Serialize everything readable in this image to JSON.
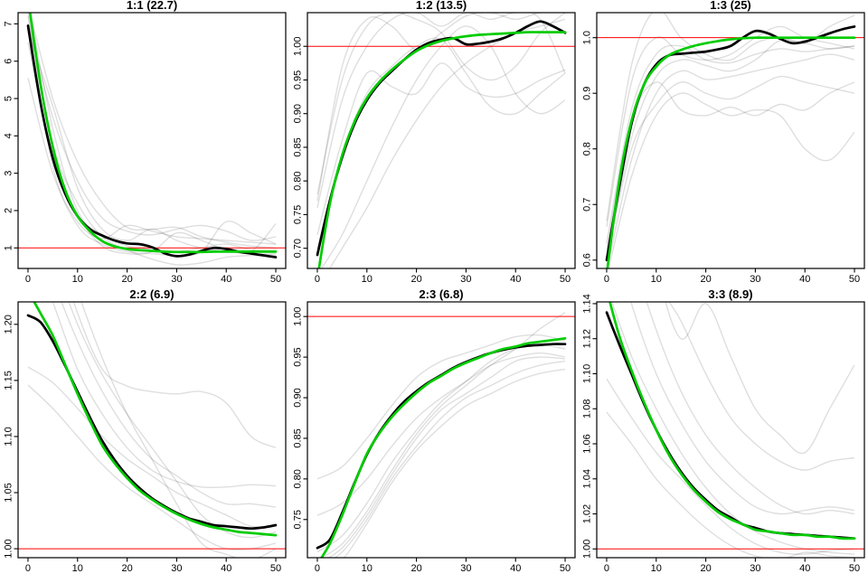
{
  "figure": {
    "background": "#ffffff",
    "colors": {
      "dark_line": "#000000",
      "smooth_line": "#00CC00",
      "reference_line": "#FF0000",
      "faint_line": "rgba(0,0,0,0.13)",
      "box": "#000000"
    }
  },
  "x_fine": [
    0,
    2.5,
    5,
    7.5,
    10,
    12.5,
    15,
    17.5,
    20,
    22.5,
    25,
    27.5,
    30,
    32.5,
    35,
    37.5,
    40,
    42.5,
    45,
    47.5,
    50
  ],
  "x_coarse": [
    0,
    5,
    10,
    15,
    20,
    25,
    30,
    35,
    40,
    45,
    50
  ],
  "x_ticks": [
    0,
    10,
    20,
    30,
    40,
    50
  ],
  "x_tick_labels": [
    "0",
    "10",
    "20",
    "30",
    "40",
    "50"
  ],
  "chart_data": [
    {
      "type": "line",
      "title": "1:1 (22.7)",
      "xlim": [
        -2,
        52
      ],
      "ylim": [
        0.45,
        7.3
      ],
      "reference_y": 1.0,
      "y_ticks": [
        1,
        2,
        3,
        4,
        5,
        6,
        7
      ],
      "y_tick_labels": [
        "1",
        "2",
        "3",
        "4",
        "5",
        "6",
        "7"
      ],
      "dark": [
        6.95,
        4.9,
        3.4,
        2.45,
        1.85,
        1.5,
        1.33,
        1.2,
        1.12,
        1.1,
        1.02,
        0.86,
        0.78,
        0.82,
        0.92,
        1.0,
        0.97,
        0.9,
        0.85,
        0.8,
        0.75
      ],
      "smooth": [
        7.7,
        5.4,
        3.7,
        2.55,
        1.85,
        1.45,
        1.18,
        1.04,
        0.97,
        0.94,
        0.92,
        0.9,
        0.89,
        0.89,
        0.89,
        0.9,
        0.9,
        0.9,
        0.9,
        0.9,
        0.9
      ],
      "faint": [
        [
          7.6,
          4.2,
          2.0,
          1.35,
          1.05,
          0.95,
          0.9,
          1.0,
          1.1,
          0.95,
          0.9
        ],
        [
          7.2,
          3.2,
          1.6,
          1.1,
          0.9,
          0.85,
          0.8,
          0.9,
          1.7,
          1.4,
          1.1
        ],
        [
          6.8,
          4.8,
          2.6,
          1.5,
          1.2,
          1.5,
          1.2,
          1.0,
          0.9,
          0.85,
          0.8
        ],
        [
          5.55,
          3.0,
          1.7,
          1.25,
          1.6,
          1.45,
          1.3,
          1.25,
          1.2,
          1.15,
          1.1
        ],
        [
          7.5,
          5.0,
          3.3,
          2.2,
          1.55,
          1.5,
          1.55,
          1.3,
          1.15,
          1.05,
          1.0
        ],
        [
          7.3,
          3.8,
          2.2,
          1.3,
          0.95,
          0.7,
          0.55,
          0.6,
          0.75,
          0.8,
          0.85
        ],
        [
          6.5,
          3.5,
          1.9,
          1.05,
          0.85,
          0.9,
          1.4,
          1.2,
          0.95,
          0.9,
          1.65
        ],
        [
          7.0,
          4.5,
          2.8,
          1.8,
          1.45,
          1.35,
          1.5,
          1.6,
          1.45,
          1.2,
          1.3
        ]
      ]
    },
    {
      "type": "line",
      "title": "1:2 (13.5)",
      "xlim": [
        -2,
        52
      ],
      "ylim": [
        0.67,
        1.05
      ],
      "reference_y": 1.0,
      "y_ticks": [
        0.7,
        0.75,
        0.8,
        0.85,
        0.9,
        0.95,
        1.0
      ],
      "y_tick_labels": [
        "0.70",
        "0.75",
        "0.80",
        "0.85",
        "0.90",
        "0.95",
        "1.00"
      ],
      "dark": [
        0.69,
        0.77,
        0.835,
        0.885,
        0.92,
        0.945,
        0.963,
        0.98,
        0.995,
        1.005,
        1.01,
        1.012,
        1.003,
        1.004,
        1.007,
        1.012,
        1.02,
        1.03,
        1.037,
        1.03,
        1.02
      ],
      "smooth": [
        0.655,
        0.765,
        0.838,
        0.888,
        0.923,
        0.947,
        0.965,
        0.98,
        0.993,
        1.002,
        1.008,
        1.012,
        1.015,
        1.017,
        1.018,
        1.019,
        1.02,
        1.021,
        1.021,
        1.021,
        1.021
      ],
      "faint": [
        [
          0.78,
          0.95,
          1.03,
          1.05,
          1.04,
          1.02,
          0.97,
          0.95,
          0.97,
          1.02,
          1.05
        ],
        [
          0.76,
          0.92,
          1.0,
          1.04,
          1.05,
          1.03,
          1.05,
          1.04,
          1.05,
          1.04,
          0.96
        ],
        [
          0.72,
          0.86,
          0.96,
          0.94,
          0.93,
          0.975,
          0.94,
          0.925,
          0.93,
          0.95,
          0.965
        ],
        [
          0.66,
          0.72,
          0.8,
          0.88,
          0.95,
          1.0,
          1.03,
          1.0,
          0.93,
          0.9,
          0.92
        ],
        [
          0.64,
          0.7,
          0.76,
          0.83,
          0.89,
          0.94,
          0.975,
          1.0,
          1.02,
          1.03,
          1.04
        ],
        [
          0.77,
          0.97,
          1.04,
          1.03,
          0.995,
          1.02,
          1.045,
          1.05,
          1.04,
          1.05,
          1.05
        ],
        [
          0.7,
          0.84,
          0.93,
          0.97,
          1.0,
          1.01,
          0.96,
          0.91,
          0.9,
          0.93,
          0.96
        ]
      ]
    },
    {
      "type": "line",
      "title": "1:3 (25)",
      "xlim": [
        -2,
        52
      ],
      "ylim": [
        0.585,
        1.045
      ],
      "reference_y": 1.0,
      "y_ticks": [
        0.6,
        0.7,
        0.8,
        0.9,
        1.0
      ],
      "y_tick_labels": [
        "0.6",
        "0.7",
        "0.8",
        "0.9",
        "1.0"
      ],
      "dark": [
        0.6,
        0.73,
        0.845,
        0.915,
        0.952,
        0.968,
        0.971,
        0.973,
        0.975,
        0.979,
        0.985,
        1.0,
        1.012,
        1.008,
        0.998,
        0.99,
        0.993,
        1.0,
        1.008,
        1.015,
        1.02
      ],
      "smooth": [
        0.575,
        0.74,
        0.85,
        0.915,
        0.948,
        0.968,
        0.978,
        0.985,
        0.99,
        0.994,
        0.997,
        0.999,
        1.0,
        1.0,
        1.0,
        1.0,
        1.0,
        1.0,
        1.0,
        1.0,
        1.0
      ],
      "faint": [
        [
          0.67,
          0.95,
          1.05,
          1.0,
          0.97,
          0.96,
          0.99,
          1.0,
          0.99,
          1.02,
          1.04
        ],
        [
          0.63,
          0.87,
          0.97,
          0.985,
          0.96,
          0.955,
          0.97,
          0.98,
          0.975,
          0.98,
          0.985
        ],
        [
          0.6,
          0.82,
          0.93,
          0.96,
          0.95,
          0.94,
          0.96,
          0.995,
          0.99,
          0.98,
          0.985
        ],
        [
          0.58,
          0.78,
          0.9,
          0.94,
          0.925,
          0.93,
          0.94,
          0.95,
          0.96,
          0.97,
          0.96
        ],
        [
          0.62,
          0.85,
          0.92,
          0.87,
          0.86,
          0.875,
          0.86,
          0.88,
          0.87,
          0.9,
          0.92
        ],
        [
          0.57,
          0.75,
          0.86,
          0.9,
          0.88,
          0.86,
          0.87,
          0.86,
          0.8,
          0.78,
          0.83
        ],
        [
          0.66,
          0.92,
          1.0,
          0.97,
          0.96,
          0.97,
          1.0,
          1.02,
          1.0,
          0.99,
          0.98
        ],
        [
          0.6,
          0.8,
          0.88,
          0.92,
          0.9,
          0.89,
          0.91,
          0.93,
          0.92,
          0.91,
          0.9
        ]
      ]
    },
    {
      "type": "line",
      "title": "2:2 (6.9)",
      "xlim": [
        -2,
        52
      ],
      "ylim": [
        0.992,
        1.22
      ],
      "reference_y": 1.0,
      "y_ticks": [
        1.0,
        1.05,
        1.1,
        1.15,
        1.2
      ],
      "y_tick_labels": [
        "1.00",
        "1.05",
        "1.10",
        "1.15",
        "1.20"
      ],
      "dark": [
        1.208,
        1.202,
        1.185,
        1.163,
        1.14,
        1.117,
        1.096,
        1.079,
        1.065,
        1.054,
        1.045,
        1.038,
        1.032,
        1.027,
        1.024,
        1.021,
        1.02,
        1.019,
        1.018,
        1.019,
        1.021
      ],
      "smooth": [
        1.23,
        1.21,
        1.19,
        1.164,
        1.138,
        1.114,
        1.092,
        1.076,
        1.063,
        1.052,
        1.044,
        1.037,
        1.031,
        1.026,
        1.022,
        1.019,
        1.017,
        1.015,
        1.014,
        1.013,
        1.012
      ],
      "faint": [
        [
          1.162,
          1.148,
          1.125,
          1.1,
          1.08,
          1.065,
          1.05,
          1.04,
          1.03,
          1.02,
          1.02
        ],
        [
          1.146,
          1.125,
          1.1,
          1.075,
          1.055,
          1.04,
          1.025,
          1.01,
          1.0,
          1.0,
          1.005
        ],
        [
          1.28,
          1.22,
          1.16,
          1.12,
          1.09,
          1.07,
          1.06,
          1.055,
          1.055,
          1.057,
          1.056
        ],
        [
          1.3,
          1.24,
          1.185,
          1.14,
          1.105,
          1.08,
          1.065,
          1.05,
          1.04,
          1.04,
          1.037
        ],
        [
          1.35,
          1.28,
          1.21,
          1.16,
          1.145,
          1.14,
          1.138,
          1.14,
          1.13,
          1.1,
          1.09
        ],
        [
          1.38,
          1.3,
          1.23,
          1.17,
          1.12,
          1.08,
          1.04,
          1.005,
          0.995,
          0.99,
          1.0
        ],
        [
          1.32,
          1.26,
          1.2,
          1.155,
          1.12,
          1.09,
          1.06,
          1.03,
          1.015,
          1.01,
          1.015
        ]
      ]
    },
    {
      "type": "line",
      "title": "2:3 (6.8)",
      "xlim": [
        -2,
        52
      ],
      "ylim": [
        0.703,
        1.018
      ],
      "reference_y": 1.0,
      "y_ticks": [
        0.75,
        0.8,
        0.85,
        0.9,
        0.95,
        1.0
      ],
      "y_tick_labels": [
        "0.75",
        "0.80",
        "0.85",
        "0.90",
        "0.95",
        "1.00"
      ],
      "dark": [
        0.715,
        0.725,
        0.758,
        0.795,
        0.83,
        0.857,
        0.878,
        0.895,
        0.908,
        0.919,
        0.928,
        0.937,
        0.944,
        0.95,
        0.955,
        0.959,
        0.962,
        0.964,
        0.965,
        0.966,
        0.966
      ],
      "smooth": [
        0.695,
        0.72,
        0.755,
        0.794,
        0.831,
        0.856,
        0.876,
        0.892,
        0.906,
        0.918,
        0.927,
        0.936,
        0.943,
        0.949,
        0.955,
        0.96,
        0.963,
        0.967,
        0.969,
        0.971,
        0.973
      ],
      "faint": [
        [
          0.8,
          0.815,
          0.85,
          0.89,
          0.925,
          0.945,
          0.955,
          0.965,
          0.975,
          0.977,
          0.97
        ],
        [
          0.755,
          0.77,
          0.8,
          0.84,
          0.875,
          0.9,
          0.92,
          0.94,
          0.95,
          0.955,
          0.95
        ],
        [
          0.7,
          0.72,
          0.76,
          0.81,
          0.855,
          0.89,
          0.915,
          0.94,
          0.96,
          0.985,
          1.005
        ],
        [
          0.69,
          0.71,
          0.75,
          0.8,
          0.84,
          0.875,
          0.9,
          0.915,
          0.93,
          0.94,
          0.945
        ],
        [
          0.68,
          0.7,
          0.745,
          0.795,
          0.835,
          0.865,
          0.89,
          0.905,
          0.92,
          0.93,
          0.935
        ],
        [
          0.71,
          0.73,
          0.77,
          0.82,
          0.86,
          0.895,
          0.92,
          0.945,
          0.96,
          0.965,
          0.96
        ],
        [
          0.695,
          0.715,
          0.755,
          0.805,
          0.85,
          0.885,
          0.905,
          0.925,
          0.945,
          0.95,
          0.948
        ]
      ]
    },
    {
      "type": "line",
      "title": "3:3 (8.9)",
      "xlim": [
        -2,
        52
      ],
      "ylim": [
        0.995,
        1.141
      ],
      "reference_y": 1.0,
      "y_ticks": [
        1.0,
        1.02,
        1.04,
        1.06,
        1.08,
        1.1,
        1.12,
        1.14
      ],
      "y_tick_labels": [
        "1.00",
        "1.02",
        "1.04",
        "1.06",
        "1.08",
        "1.10",
        "1.12",
        "1.14"
      ],
      "dark": [
        1.135,
        1.117,
        1.1,
        1.083,
        1.068,
        1.055,
        1.044,
        1.035,
        1.028,
        1.022,
        1.018,
        1.014,
        1.012,
        1.01,
        1.009,
        1.0085,
        1.008,
        1.0075,
        1.007,
        1.0065,
        1.006
      ],
      "smooth": [
        1.148,
        1.122,
        1.102,
        1.084,
        1.068,
        1.054,
        1.043,
        1.034,
        1.027,
        1.021,
        1.017,
        1.014,
        1.011,
        1.01,
        1.009,
        1.008,
        1.008,
        1.007,
        1.007,
        1.006,
        1.006
      ],
      "faint": [
        [
          1.097,
          1.075,
          1.055,
          1.04,
          1.025,
          1.012,
          1.003,
          0.998,
          0.997,
          0.999,
          1.0
        ],
        [
          1.078,
          1.06,
          1.04,
          1.025,
          1.012,
          1.002,
          0.996,
          0.994,
          0.998,
          0.996,
          0.995
        ],
        [
          1.19,
          1.14,
          1.1,
          1.072,
          1.05,
          1.035,
          1.024,
          1.02,
          1.022,
          1.024,
          1.022
        ],
        [
          1.23,
          1.17,
          1.125,
          1.09,
          1.065,
          1.048,
          1.035,
          1.025,
          1.02,
          1.022,
          1.02
        ],
        [
          1.3,
          1.22,
          1.16,
          1.12,
          1.14,
          1.11,
          1.08,
          1.065,
          1.055,
          1.08,
          1.105
        ],
        [
          1.26,
          1.2,
          1.155,
          1.13,
          1.1,
          1.075,
          1.06,
          1.05,
          1.045,
          1.05,
          1.052
        ],
        [
          1.15,
          1.11,
          1.08,
          1.055,
          1.035,
          1.02,
          1.01,
          1.004,
          1.0,
          0.998,
          0.997
        ]
      ]
    }
  ]
}
